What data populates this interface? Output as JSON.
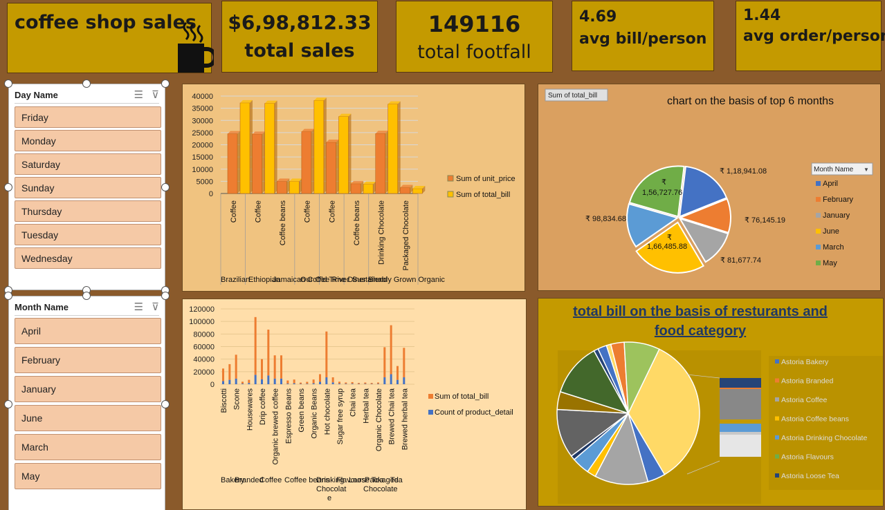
{
  "header": {
    "title": "coffee shop sales",
    "total_sales_value": "$6,98,812.33",
    "total_sales_label": "total sales",
    "footfall_value": "149116",
    "footfall_label": "total footfall",
    "avg_bill_value": "4.69",
    "avg_bill_label": "avg bill/person",
    "avg_order_value": "1.44",
    "avg_order_label": "avg order/person"
  },
  "day_slicer": {
    "title": "Day Name",
    "items": [
      "Friday",
      "Monday",
      "Saturday",
      "Sunday",
      "Thursday",
      "Tuesday",
      "Wednesday"
    ]
  },
  "month_slicer": {
    "title": "Month Name",
    "items": [
      "April",
      "February",
      "January",
      "June",
      "March",
      "May"
    ]
  },
  "chart_data": [
    {
      "type": "bar",
      "title": "",
      "categories": [
        "Coffee",
        "Coffee",
        "Coffee beans",
        "Coffee",
        "Coffee",
        "Coffee beans",
        "Drinking Chocolate",
        "Packaged Chocolate"
      ],
      "groups": [
        "Brazilian",
        "Ethiopian",
        "Jamaican Coffee River",
        "Our Old Time Diner Blend",
        "Sustainably Grown Organic"
      ],
      "series": [
        {
          "name": "Sum of unit_price",
          "color": "#ed7d31",
          "values": [
            24500,
            24300,
            5000,
            25400,
            21000,
            4000,
            24600,
            2400
          ]
        },
        {
          "name": "Sum of total_bill",
          "color": "#ffc000",
          "values": [
            37200,
            37000,
            5000,
            38200,
            31600,
            3800,
            36700,
            2000
          ]
        }
      ],
      "yticks": [
        "0",
        "5000",
        "10000",
        "15000",
        "20000",
        "25000",
        "30000",
        "35000",
        "40000"
      ],
      "ylim": [
        0,
        40000
      ],
      "legend": "right"
    },
    {
      "type": "pie",
      "title": "chart on the basis of top 6 months",
      "field_button": "Sum of total_bill",
      "legend_title": "Month Name",
      "labels": [
        "April",
        "February",
        "January",
        "June",
        "March",
        "May"
      ],
      "values": [
        118941.08,
        76145.19,
        81677.74,
        166485.88,
        98834.68,
        156727.76
      ],
      "value_labels": [
        "₹ 1,18,941.08",
        "₹ 76,145.19",
        "₹ 81,677.74",
        "₹ 1,66,485.88",
        "₹ 98,834.68",
        "₹ 1,56,727.76"
      ],
      "value_labels_split": [
        "₹",
        "1,66,485.88",
        "₹",
        "1,56,727.76"
      ],
      "colors": [
        "#4472c4",
        "#ed7d31",
        "#a5a5a5",
        "#ffc000",
        "#5b9bd5",
        "#70ad47"
      ],
      "legend": "right"
    },
    {
      "type": "bar",
      "title": "",
      "categories": [
        "Biscotti",
        "",
        "Scone",
        "",
        "Housewares",
        "",
        "Drip coffee",
        "",
        "Organic brewed coffee",
        "",
        "Espresso Beans",
        "",
        "Green beans",
        "",
        "Organic Beans",
        "",
        "Hot chocolate",
        "",
        "Sugar free syrup",
        "",
        "Chai tea",
        "",
        "Herbal tea",
        "",
        "Organic Chocolate",
        "",
        "Brewed Chai tea",
        "",
        "Brewed herbal tea",
        ""
      ],
      "groups": [
        "Bakery",
        "Branded",
        "Coffee",
        "Coffee beans",
        "Drinking Chocolate",
        "Flavours",
        "Loose Tea",
        "Packaged Chocolate",
        "Tea"
      ],
      "series": [
        {
          "name": "Sum of total_bill",
          "color": "#ed7d31",
          "values": [
            20000,
            25000,
            38000,
            3000,
            5000,
            92000,
            32000,
            73000,
            37000,
            37000,
            5000,
            6000,
            2000,
            3000,
            6000,
            12000,
            73000,
            8000,
            3000,
            2000,
            2500,
            1500,
            2000,
            1500,
            2000,
            48000,
            78000,
            22000,
            47000,
            0
          ]
        },
        {
          "name": "Count of product_detail",
          "color": "#4472c4",
          "values": [
            5000,
            7000,
            9000,
            1000,
            2000,
            15000,
            8000,
            14000,
            9000,
            9000,
            1000,
            1500,
            600,
            800,
            1500,
            4000,
            11000,
            3000,
            1000,
            800,
            900,
            500,
            700,
            500,
            700,
            11000,
            16000,
            7000,
            11000,
            0
          ]
        }
      ],
      "yticks": [
        "0",
        "20000",
        "40000",
        "60000",
        "80000",
        "100000",
        "120000"
      ],
      "ylim": [
        0,
        120000
      ],
      "legend": "right"
    },
    {
      "type": "pie",
      "title": "total bill on the basis of resturants and food category",
      "legend_labels": [
        "Astoria Bakery",
        "Astoria Branded",
        "Astoria Coffee",
        "Astoria Coffee beans",
        "Astoria Drinking Chocolate",
        "Astoria Flavours",
        "Astoria Loose Tea"
      ],
      "legend_colors": [
        "#4472c4",
        "#ed7d31",
        "#a5a5a5",
        "#ffc000",
        "#5b9bd5",
        "#70ad47",
        "#264478"
      ],
      "values": [
        34,
        4,
        12,
        2,
        4,
        1,
        11,
        4,
        12,
        1,
        2,
        1,
        3,
        8
      ],
      "colors": [
        "#ffd966",
        "#4472c4",
        "#a5a5a5",
        "#ffc000",
        "#5b9bd5",
        "#1f3864",
        "#636363",
        "#997300",
        "#43682b",
        "#264478",
        "#4472c4",
        "#ffd966",
        "#ed7d31",
        "#9dc35d"
      ],
      "legend": "right"
    }
  ]
}
